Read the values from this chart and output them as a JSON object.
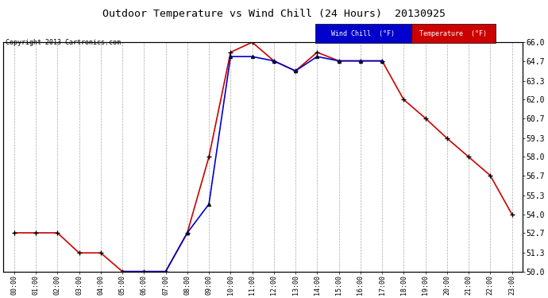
{
  "title": "Outdoor Temperature vs Wind Chill (24 Hours)  20130925",
  "copyright": "Copyright 2013 Cartronics.com",
  "x_labels": [
    "00:00",
    "01:00",
    "02:00",
    "03:00",
    "04:00",
    "05:00",
    "06:00",
    "07:00",
    "08:00",
    "09:00",
    "10:00",
    "11:00",
    "12:00",
    "13:00",
    "14:00",
    "15:00",
    "16:00",
    "17:00",
    "18:00",
    "19:00",
    "20:00",
    "21:00",
    "22:00",
    "23:00"
  ],
  "ylim": [
    50.0,
    66.0
  ],
  "yticks": [
    50.0,
    51.3,
    52.7,
    54.0,
    55.3,
    56.7,
    58.0,
    59.3,
    60.7,
    62.0,
    63.3,
    64.7,
    66.0
  ],
  "temperature": [
    52.7,
    52.7,
    52.7,
    51.3,
    51.3,
    50.0,
    50.0,
    50.0,
    52.7,
    58.0,
    65.3,
    66.0,
    64.7,
    64.0,
    65.3,
    64.7,
    64.7,
    64.7,
    62.0,
    60.7,
    59.3,
    58.0,
    56.7,
    54.0
  ],
  "wind_chill": [
    null,
    null,
    null,
    null,
    null,
    50.0,
    50.0,
    50.0,
    52.7,
    54.7,
    65.0,
    65.0,
    64.7,
    64.0,
    65.0,
    64.7,
    64.7,
    64.7,
    null,
    null,
    null,
    null,
    null,
    null
  ],
  "temp_color": "#cc0000",
  "wind_color": "#0000cc",
  "background_color": "#ffffff",
  "grid_color": "#aaaaaa",
  "legend_wind_bg": "#0000cc",
  "legend_temp_bg": "#cc0000"
}
